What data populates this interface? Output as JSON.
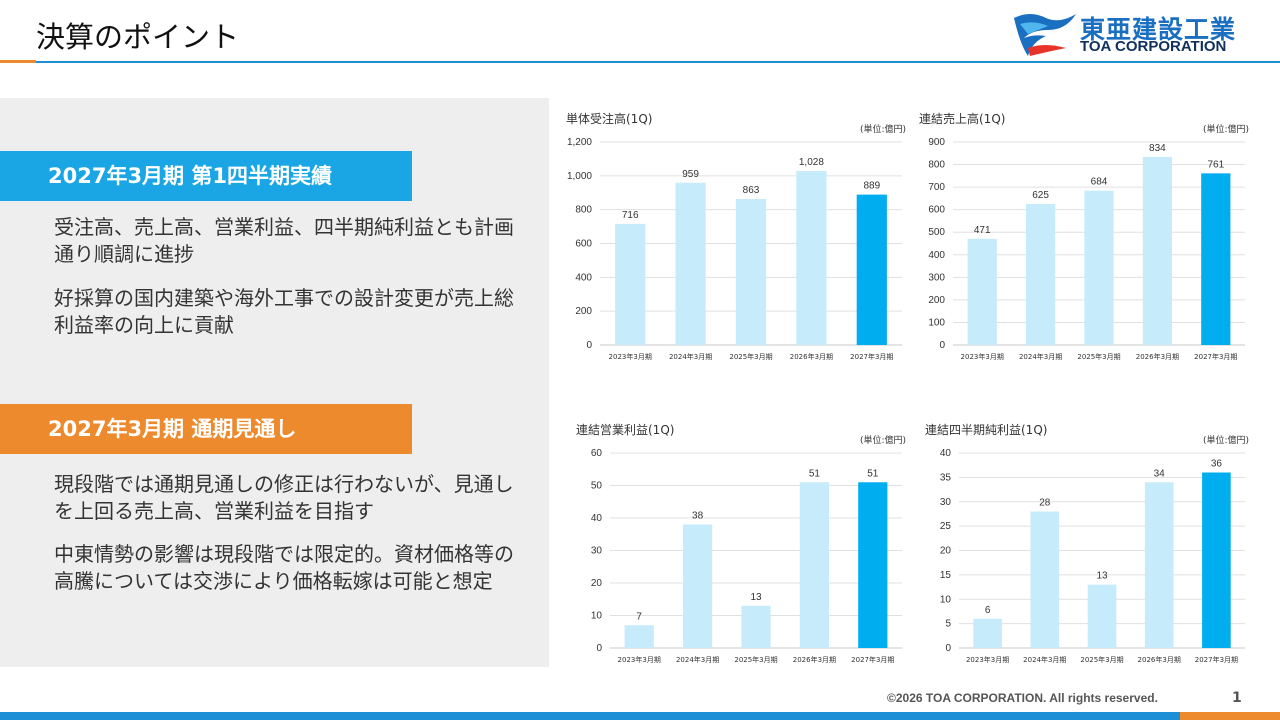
{
  "page": {
    "title": "決算のポイント",
    "footer": "©2026 TOA CORPORATION. All rights reserved.",
    "page_number": "1"
  },
  "logo": {
    "name_jp": "東亜建設工業",
    "name_en": "TOA CORPORATION"
  },
  "colors": {
    "accent_blue": "#1aa6e4",
    "accent_orange": "#ee8a2e",
    "bar_light": "#c6ebfa",
    "bar_highlight": "#00aeef"
  },
  "sections": [
    {
      "header": "2027年3月期 第1四半期実績",
      "paragraphs": [
        "受注高、売上高、営業利益、四半期純利益とも計画通り順調に進捗",
        "好採算の国内建築や海外工事での設計変更が売上総利益率の向上に貢献"
      ]
    },
    {
      "header": "2027年3月期 通期見通し",
      "paragraphs": [
        "現段階では通期見通しの修正は行わないが、見通しを上回る売上高、営業利益を目指す",
        "中東情勢の影響は現段階では限定的。資材価格等の高騰については交渉により価格転嫁は可能と想定"
      ]
    }
  ],
  "chart_data": [
    {
      "type": "bar",
      "title": "単体受注高(1Q)",
      "unit": "(単位:億円)",
      "categories": [
        "2023年3月期",
        "2024年3月期",
        "2025年3月期",
        "2026年3月期",
        "2027年3月期"
      ],
      "values": [
        716,
        959,
        863,
        1028,
        889
      ],
      "value_labels": [
        "716",
        "959",
        "863",
        "1,028",
        "889"
      ],
      "ylim": [
        0,
        1200
      ],
      "yticks": [
        "0",
        "200",
        "400",
        "600",
        "800",
        "1,000",
        "1,200"
      ],
      "highlight_index": 4
    },
    {
      "type": "bar",
      "title": "連結売上高(1Q)",
      "unit": "(単位:億円)",
      "categories": [
        "2023年3月期",
        "2024年3月期",
        "2025年3月期",
        "2026年3月期",
        "2027年3月期"
      ],
      "values": [
        471,
        625,
        684,
        834,
        761
      ],
      "value_labels": [
        "471",
        "625",
        "684",
        "834",
        "761"
      ],
      "ylim": [
        0,
        900
      ],
      "yticks": [
        "0",
        "100",
        "200",
        "300",
        "400",
        "500",
        "600",
        "700",
        "800",
        "900"
      ],
      "highlight_index": 4
    },
    {
      "type": "bar",
      "title": "連結営業利益(1Q)",
      "unit": "(単位:億円)",
      "categories": [
        "2023年3月期",
        "2024年3月期",
        "2025年3月期",
        "2026年3月期",
        "2027年3月期"
      ],
      "values": [
        7,
        38,
        13,
        51,
        51
      ],
      "value_labels": [
        "7",
        "38",
        "13",
        "51",
        "51"
      ],
      "ylim": [
        0,
        60
      ],
      "yticks": [
        "0",
        "10",
        "20",
        "30",
        "40",
        "50",
        "60"
      ],
      "highlight_index": 4
    },
    {
      "type": "bar",
      "title": "連結四半期純利益(1Q)",
      "unit": "(単位:億円)",
      "categories": [
        "2023年3月期",
        "2024年3月期",
        "2025年3月期",
        "2026年3月期",
        "2027年3月期"
      ],
      "values": [
        6,
        28,
        13,
        34,
        36
      ],
      "value_labels": [
        "6",
        "28",
        "13",
        "34",
        "36"
      ],
      "ylim": [
        0,
        40
      ],
      "yticks": [
        "0",
        "5",
        "10",
        "15",
        "20",
        "25",
        "30",
        "35",
        "40"
      ],
      "highlight_index": 4
    }
  ]
}
